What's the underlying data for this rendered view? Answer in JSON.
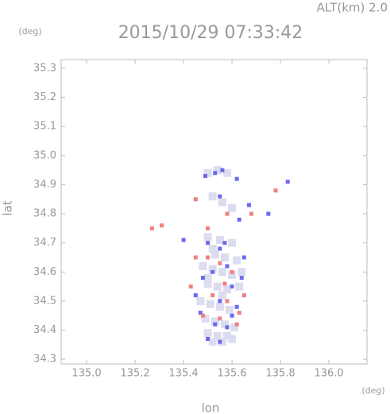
{
  "chart_data": {
    "type": "scatter",
    "title": "2015/10/29 07:33:42",
    "annotation": "ALT(km) 2.0",
    "y_unit": "(deg)",
    "x_unit": "(deg)",
    "xlabel": "lon",
    "ylabel": "lat",
    "xlim": [
      134.895,
      136.157
    ],
    "ylim": [
      34.284,
      35.33
    ],
    "xticks": [
      {
        "value": 135.0,
        "label": "135.0"
      },
      135.2,
      135.4,
      135.6,
      135.8,
      {
        "value": 136.0,
        "label": "136.0"
      }
    ],
    "yticks": [
      35.3,
      35.2,
      35.1,
      {
        "value": 35.0,
        "label": "35.0"
      },
      34.9,
      34.8,
      34.7,
      34.6,
      34.5,
      34.4,
      34.3
    ],
    "series": [
      {
        "color": "#dcdcf0",
        "x": [
          135.5,
          135.54,
          135.58,
          135.52,
          135.56,
          135.6,
          135.5,
          135.55,
          135.6,
          135.53,
          135.57,
          135.62,
          135.48,
          135.52,
          135.56,
          135.6,
          135.5,
          135.54,
          135.58,
          135.63,
          135.47,
          135.51,
          135.55,
          135.59,
          135.49,
          135.53,
          135.57,
          135.61,
          135.5,
          135.54,
          135.58,
          135.52,
          135.56,
          135.6,
          135.64,
          135.52,
          135.56,
          135.5
        ],
        "y": [
          34.94,
          34.95,
          34.94,
          34.86,
          34.84,
          34.82,
          34.72,
          34.71,
          34.7,
          34.66,
          34.65,
          34.64,
          34.62,
          34.61,
          34.6,
          34.59,
          34.56,
          34.55,
          34.54,
          34.55,
          34.5,
          34.49,
          34.48,
          34.47,
          34.44,
          34.43,
          34.42,
          34.41,
          34.39,
          34.38,
          34.38,
          34.36,
          34.36,
          34.37,
          34.6,
          34.68,
          34.52,
          34.58
        ]
      },
      {
        "color": "#6a6af0",
        "x": [
          135.53,
          135.56,
          135.49,
          135.62,
          135.55,
          135.63,
          135.5,
          135.55,
          135.58,
          135.52,
          135.6,
          135.55,
          135.62,
          135.53,
          135.58,
          135.5,
          135.55,
          135.45,
          135.65,
          135.48,
          135.67,
          135.4,
          135.83,
          135.75,
          135.57,
          135.6,
          135.47,
          135.64
        ],
        "y": [
          34.94,
          34.95,
          34.93,
          34.92,
          34.86,
          34.78,
          34.7,
          34.68,
          34.62,
          34.6,
          34.55,
          34.5,
          34.48,
          34.42,
          34.41,
          34.37,
          34.36,
          34.52,
          34.65,
          34.58,
          34.83,
          34.71,
          34.91,
          34.8,
          34.7,
          34.45,
          34.46,
          34.58
        ]
      },
      {
        "color": "#f08080",
        "x": [
          135.78,
          135.27,
          135.31,
          135.58,
          135.5,
          135.45,
          135.55,
          135.6,
          135.52,
          135.58,
          135.65,
          135.48,
          135.55,
          135.62,
          135.5,
          135.68,
          135.45,
          135.57,
          135.63,
          135.43
        ],
        "y": [
          34.88,
          34.75,
          34.76,
          34.8,
          34.75,
          34.65,
          34.63,
          34.6,
          34.52,
          34.5,
          34.52,
          34.45,
          34.44,
          34.42,
          34.65,
          34.8,
          34.85,
          34.56,
          34.46,
          34.55
        ]
      }
    ]
  }
}
